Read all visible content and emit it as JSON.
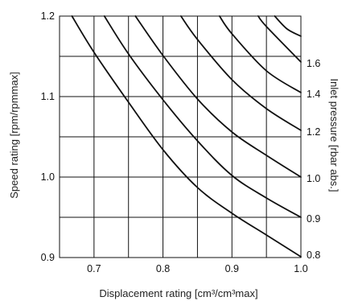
{
  "chart_data": {
    "type": "line",
    "xlabel": "Displacement rating  [cm³/cm³max]",
    "ylabel": "Speed rating [rpm/rpmmax]",
    "y2label": "Inlet pressure [rbar abs.]",
    "xlim": [
      0.65,
      1.0
    ],
    "ylim": [
      0.9,
      1.2
    ],
    "x_ticks": [
      "0.7",
      "0.8",
      "0.9",
      "1.0"
    ],
    "y_ticks": [
      "0.9",
      "1.0",
      "1.1",
      "1.2"
    ],
    "grid": true,
    "x_grid": [
      0.7,
      0.75,
      0.8,
      0.85,
      0.9,
      0.95,
      1.0
    ],
    "y_grid": [
      0.95,
      1.0,
      1.05,
      1.1,
      1.15,
      1.2
    ],
    "series": [
      {
        "label": "0.8",
        "x": [
          0.668,
          0.7,
          0.75,
          0.8,
          0.85,
          0.9,
          0.95,
          1.0
        ],
        "y": [
          1.2,
          1.155,
          1.093,
          1.034,
          0.987,
          0.955,
          0.928,
          0.901
        ]
      },
      {
        "label": "0.9",
        "x": [
          0.715,
          0.75,
          0.8,
          0.85,
          0.9,
          0.95,
          1.0
        ],
        "y": [
          1.2,
          1.153,
          1.096,
          1.045,
          1.002,
          0.974,
          0.95
        ]
      },
      {
        "label": "1.0",
        "x": [
          0.76,
          0.8,
          0.85,
          0.9,
          0.95,
          1.0
        ],
        "y": [
          1.2,
          1.151,
          1.097,
          1.056,
          1.027,
          1.0
        ]
      },
      {
        "label": "1.2",
        "x": [
          0.826,
          0.85,
          0.9,
          0.95,
          1.0
        ],
        "y": [
          1.2,
          1.171,
          1.121,
          1.085,
          1.058
        ]
      },
      {
        "label": "1.4",
        "x": [
          0.882,
          0.9,
          0.95,
          1.0
        ],
        "y": [
          1.2,
          1.178,
          1.132,
          1.105
        ]
      },
      {
        "label": "1.6",
        "x": [
          0.938,
          0.95,
          1.0
        ],
        "y": [
          1.2,
          1.187,
          1.143
        ]
      },
      {
        "label": "",
        "x": [
          0.962,
          0.98,
          1.0
        ],
        "y": [
          1.2,
          1.184,
          1.175
        ]
      }
    ],
    "right_labels": [
      "0.8",
      "0.9",
      "1.0",
      "1.2",
      "1.4",
      "1.6"
    ]
  }
}
